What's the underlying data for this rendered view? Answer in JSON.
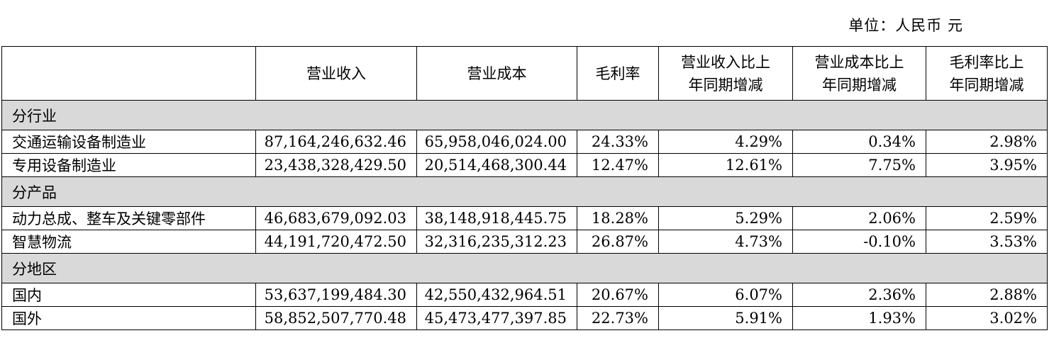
{
  "unit_label": "单位：人民币  元",
  "headers": [
    "",
    "营业收入",
    "营业成本",
    "毛利率",
    "营业收入比上年同期增减",
    "营业成本比上年同期增减",
    "毛利率比上年同期增减"
  ],
  "headers_lines": [
    [
      ""
    ],
    [
      "营业收入"
    ],
    [
      "营业成本"
    ],
    [
      "毛利率"
    ],
    [
      "营业收入比上",
      "年同期增减"
    ],
    [
      "营业成本比上",
      "年同期增减"
    ],
    [
      "毛利率比上",
      "年同期增减"
    ]
  ],
  "sections": [
    {
      "title": "分行业",
      "rows": [
        [
          "交通运输设备制造业",
          "87,164,246,632.46",
          "65,958,046,024.00",
          "24.33%",
          "4.29%",
          "0.34%",
          "2.98%"
        ],
        [
          "专用设备制造业",
          "23,438,328,429.50",
          "20,514,468,300.44",
          "12.47%",
          "12.61%",
          "7.75%",
          "3.95%"
        ]
      ]
    },
    {
      "title": "分产品",
      "rows": [
        [
          "动力总成、整车及关键零部件",
          "46,683,679,092.03",
          "38,148,918,445.75",
          "18.28%",
          "5.29%",
          "2.06%",
          "2.59%"
        ],
        [
          "智慧物流",
          "44,191,720,472.50",
          "32,316,235,312.23",
          "26.87%",
          "4.73%",
          "-0.10%",
          "3.53%"
        ]
      ]
    },
    {
      "title": "分地区",
      "rows": [
        [
          "国内",
          "53,637,199,484.30",
          "42,550,432,964.51",
          "20.67%",
          "6.07%",
          "2.36%",
          "2.88%"
        ],
        [
          "国外",
          "58,852,507,770.48",
          "45,473,477,397.85",
          "22.73%",
          "5.91%",
          "1.93%",
          "3.02%"
        ]
      ]
    }
  ]
}
